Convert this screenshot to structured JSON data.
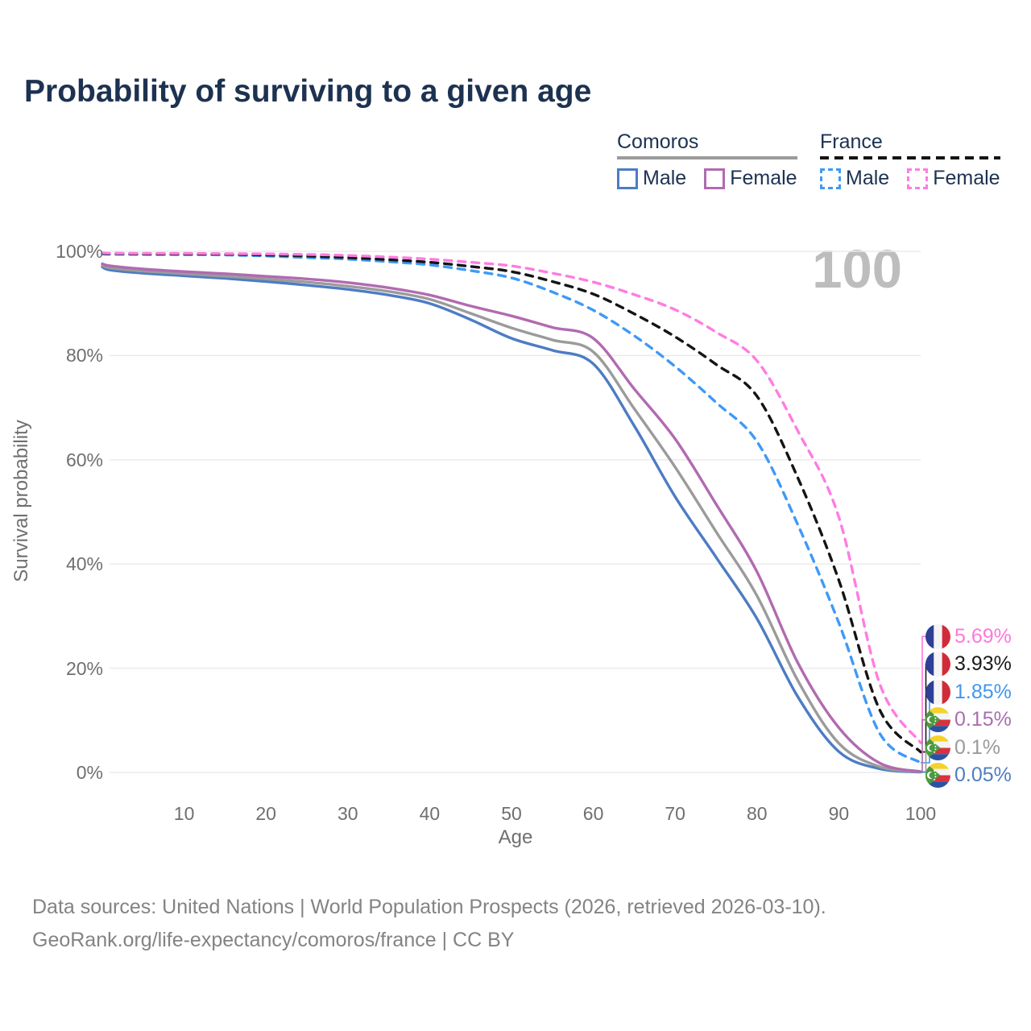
{
  "title": "Probability of surviving to a given age",
  "watermark": "100",
  "legend": {
    "groups": [
      {
        "name": "Comoros",
        "line_style": "solid",
        "line_color": "#9b9b9b",
        "items": [
          {
            "label": "Male",
            "color": "#4d7cc3"
          },
          {
            "label": "Female",
            "color": "#b16ab1"
          }
        ]
      },
      {
        "name": "France",
        "line_style": "dashed",
        "line_color": "#141414",
        "items": [
          {
            "label": "Male",
            "color": "#3f99f7"
          },
          {
            "label": "Female",
            "color": "#ff7ce2"
          }
        ]
      }
    ]
  },
  "axes": {
    "y_title": "Survival probability",
    "x_title": "Age",
    "y_ticks": [
      {
        "label": "0%",
        "value": 0
      },
      {
        "label": "20%",
        "value": 20
      },
      {
        "label": "40%",
        "value": 40
      },
      {
        "label": "60%",
        "value": 60
      },
      {
        "label": "80%",
        "value": 80
      },
      {
        "label": "100%",
        "value": 100
      }
    ],
    "x_ticks": [
      {
        "label": "10",
        "value": 10
      },
      {
        "label": "20",
        "value": 20
      },
      {
        "label": "30",
        "value": 30
      },
      {
        "label": "40",
        "value": 40
      },
      {
        "label": "50",
        "value": 50
      },
      {
        "label": "60",
        "value": 60
      },
      {
        "label": "70",
        "value": 70
      },
      {
        "label": "80",
        "value": 80
      },
      {
        "label": "90",
        "value": 90
      },
      {
        "label": "100",
        "value": 100
      }
    ]
  },
  "chart_data": {
    "type": "line",
    "x_range": [
      0,
      100
    ],
    "y_range": [
      0,
      100
    ],
    "grid": "horizontal",
    "x": [
      0,
      1,
      5,
      10,
      15,
      20,
      25,
      30,
      35,
      40,
      45,
      50,
      55,
      60,
      65,
      70,
      75,
      80,
      85,
      90,
      95,
      100
    ],
    "series": [
      {
        "id": "comoros-male",
        "flag": "comoros",
        "dash": false,
        "color": "#4d7cc3",
        "end_label": "0.05%",
        "end_label_color": "#4f7dc0",
        "values": [
          97.0,
          96.4,
          95.8,
          95.3,
          94.8,
          94.2,
          93.5,
          92.7,
          91.6,
          90.0,
          86.9,
          83.3,
          81.0,
          78.4,
          66.5,
          52.9,
          41.3,
          29.5,
          14.5,
          4.0,
          0.7,
          0.05
        ]
      },
      {
        "id": "comoros-both-sexes",
        "flag": "comoros",
        "dash": false,
        "color": "#9b9b9b",
        "end_label": "0.1%",
        "end_label_color": "#9a9a9a",
        "values": [
          97.3,
          96.8,
          96.2,
          95.7,
          95.2,
          94.7,
          94.1,
          93.3,
          92.3,
          90.8,
          88.1,
          85.3,
          83.0,
          80.7,
          69.8,
          58.6,
          46.2,
          33.9,
          17.6,
          5.6,
          1.1,
          0.1
        ]
      },
      {
        "id": "comoros-female",
        "flag": "comoros",
        "dash": false,
        "color": "#b16ab1",
        "end_label": "0.15%",
        "end_label_color": "#a86fad",
        "values": [
          97.6,
          97.2,
          96.6,
          96.1,
          95.7,
          95.2,
          94.7,
          94.0,
          93.0,
          91.6,
          89.5,
          87.6,
          85.4,
          83.3,
          73.6,
          64.0,
          51.5,
          38.5,
          21.0,
          8.6,
          1.8,
          0.15
        ]
      },
      {
        "id": "france-male",
        "flag": "france",
        "dash": true,
        "color": "#3f99f7",
        "end_label": "1.85%",
        "end_label_color": "#4196f0",
        "values": [
          99.5,
          99.45,
          99.4,
          99.35,
          99.3,
          99.1,
          98.8,
          98.5,
          98.0,
          97.4,
          96.3,
          94.9,
          92.2,
          88.7,
          83.8,
          77.9,
          71.0,
          63.5,
          47.5,
          28.7,
          7.5,
          1.85
        ]
      },
      {
        "id": "france-both-sexes",
        "flag": "france",
        "dash": true,
        "color": "#141414",
        "end_label": "3.93%",
        "end_label_color": "#1a1a1a",
        "values": [
          99.6,
          99.55,
          99.5,
          99.5,
          99.45,
          99.3,
          99.1,
          98.8,
          98.4,
          97.9,
          97.1,
          96.1,
          94.2,
          91.8,
          88.0,
          83.6,
          78.3,
          72.2,
          56.5,
          36.9,
          12.0,
          3.93
        ]
      },
      {
        "id": "france-female",
        "flag": "france",
        "dash": true,
        "color": "#ff7ce2",
        "end_label": "5.69%",
        "end_label_color": "#ff77dd",
        "values": [
          99.7,
          99.65,
          99.6,
          99.6,
          99.55,
          99.5,
          99.4,
          99.2,
          98.9,
          98.5,
          97.9,
          97.2,
          95.8,
          94.1,
          91.7,
          88.8,
          84.5,
          79.0,
          65.5,
          49.0,
          17.0,
          5.69
        ]
      }
    ]
  },
  "footer": {
    "line1": "Data sources: United Nations | World Population Prospects (2026, retrieved 2026-03-10).",
    "line2": "GeoRank.org/life-expectancy/comoros/france | CC BY"
  },
  "flag_colors": {
    "france": {
      "blue": "#2d3f96",
      "white": "#f4f4f4",
      "red": "#d02b3a"
    },
    "comoros": {
      "yellow": "#f5d22b",
      "white": "#f4f4f4",
      "red": "#d8323e",
      "blue": "#2a52a0",
      "green": "#4c9a3f"
    }
  }
}
